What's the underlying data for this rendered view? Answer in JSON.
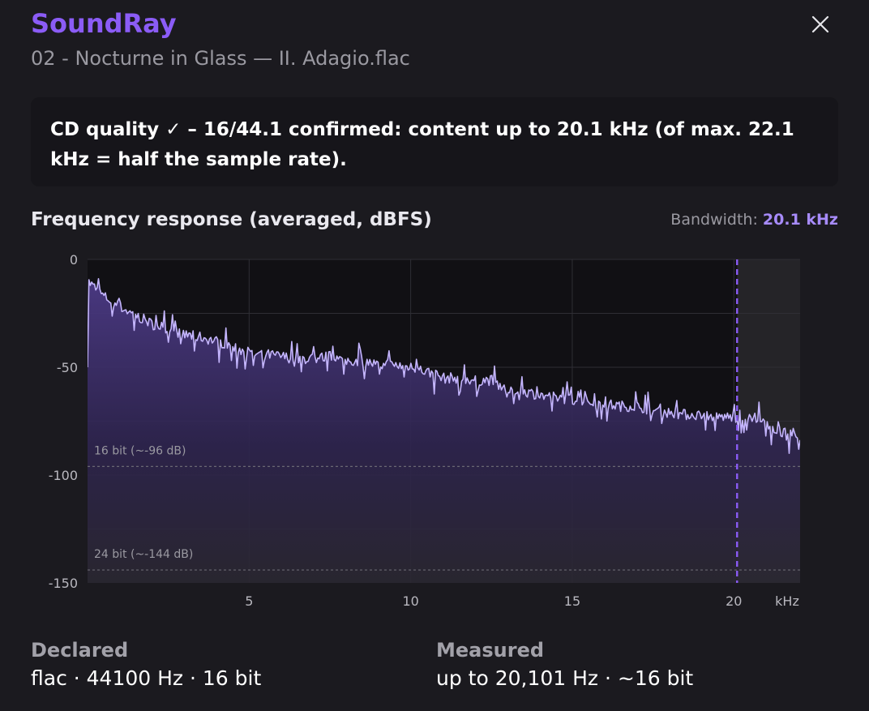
{
  "app": {
    "title": "SoundRay",
    "file_name": "02 - Nocturne in Glass — II. Adagio.flac"
  },
  "verdict": {
    "text": "CD quality ✓ – 16/44.1 confirmed: content up to 20.1 kHz (of max. 22.1 kHz = half the sample rate)."
  },
  "chart_section": {
    "title": "Frequency response (averaged, dBFS)",
    "bandwidth_label": "Bandwidth:",
    "bandwidth_value": "20.1 kHz"
  },
  "chart_data": {
    "type": "area",
    "x_unit": "kHz",
    "xlim": [
      0,
      22.05
    ],
    "ylim": [
      -150,
      0
    ],
    "x_ticks": [
      5,
      10,
      15,
      20
    ],
    "y_ticks": [
      0,
      -50,
      -100,
      -150
    ],
    "cutoff_khz": 20.1,
    "grid": true,
    "reference_lines": [
      {
        "label": "16 bit (~-96 dB)",
        "value": -96
      },
      {
        "label": "24 bit (~-144 dB)",
        "value": -144
      }
    ],
    "series": [
      {
        "x": [
          0.0,
          0.5,
          1.0,
          1.5,
          2.0,
          2.5,
          3.0,
          3.5,
          4.0,
          4.5,
          5.0,
          5.5,
          6.0,
          6.5,
          7.0,
          7.5,
          8.0,
          8.5,
          9.0,
          9.5,
          10.0,
          10.5,
          11.0,
          11.5,
          12.0,
          12.5,
          13.0,
          13.5,
          14.0,
          14.5,
          15.0,
          15.5,
          16.0,
          16.5,
          17.0,
          17.5,
          18.0,
          18.5,
          19.0,
          19.5,
          20.0,
          20.5,
          21.0,
          21.5,
          22.0
        ],
        "values": [
          -10,
          -17,
          -22,
          -26,
          -30,
          -32,
          -35,
          -36,
          -38,
          -40,
          -44,
          -44,
          -45,
          -46,
          -46,
          -45,
          -47,
          -47,
          -49,
          -49,
          -50,
          -52,
          -55,
          -55,
          -56,
          -56,
          -60,
          -61,
          -63,
          -64,
          -65,
          -66,
          -67,
          -68,
          -68,
          -70,
          -71,
          -72,
          -72,
          -73,
          -73,
          -74,
          -76,
          -80,
          -83
        ]
      }
    ]
  },
  "declared": {
    "label": "Declared",
    "value": "flac · 44100 Hz · 16 bit"
  },
  "measured": {
    "label": "Measured",
    "value": "up to 20,101 Hz · ~16 bit"
  },
  "colors": {
    "accent": "#8b5cf6",
    "line": "#c4b5fd",
    "background": "#1b1a1f"
  }
}
